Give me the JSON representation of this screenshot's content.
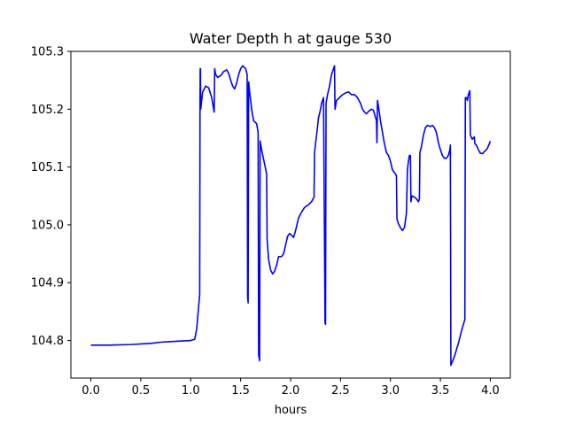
{
  "chart_data": {
    "type": "line",
    "title": "Water Depth h at gauge 530",
    "xlabel": "hours",
    "ylabel": "",
    "xlim": [
      -0.2,
      4.2
    ],
    "ylim": [
      104.735,
      105.3
    ],
    "x_ticks": [
      0.0,
      0.5,
      1.0,
      1.5,
      2.0,
      2.5,
      3.0,
      3.5,
      4.0
    ],
    "x_tick_labels": [
      "0.0",
      "0.5",
      "1.0",
      "1.5",
      "2.0",
      "2.5",
      "3.0",
      "3.5",
      "4.0"
    ],
    "y_ticks": [
      104.8,
      104.9,
      105.0,
      105.1,
      105.2,
      105.3
    ],
    "y_tick_labels": [
      "104.8",
      "104.9",
      "105.0",
      "105.1",
      "105.2",
      "105.3"
    ],
    "grid": false,
    "series": [
      {
        "color": "#0000ff",
        "points": [
          [
            0.0,
            104.792
          ],
          [
            0.2,
            104.792
          ],
          [
            0.4,
            104.793
          ],
          [
            0.6,
            104.795
          ],
          [
            0.7,
            104.797
          ],
          [
            0.8,
            104.798
          ],
          [
            0.9,
            104.799
          ],
          [
            1.0,
            104.8
          ],
          [
            1.04,
            104.802
          ],
          [
            1.06,
            104.82
          ],
          [
            1.09,
            104.88
          ],
          [
            1.093,
            105.2
          ],
          [
            1.095,
            105.27
          ],
          [
            1.098,
            105.27
          ],
          [
            1.1,
            105.2
          ],
          [
            1.12,
            105.23
          ],
          [
            1.15,
            105.24
          ],
          [
            1.18,
            105.237
          ],
          [
            1.21,
            105.22
          ],
          [
            1.235,
            105.195
          ],
          [
            1.24,
            105.27
          ],
          [
            1.25,
            105.26
          ],
          [
            1.27,
            105.255
          ],
          [
            1.3,
            105.258
          ],
          [
            1.33,
            105.265
          ],
          [
            1.36,
            105.268
          ],
          [
            1.38,
            105.262
          ],
          [
            1.4,
            105.25
          ],
          [
            1.42,
            105.24
          ],
          [
            1.44,
            105.235
          ],
          [
            1.46,
            105.245
          ],
          [
            1.48,
            105.26
          ],
          [
            1.5,
            105.27
          ],
          [
            1.52,
            105.275
          ],
          [
            1.55,
            105.27
          ],
          [
            1.565,
            105.26
          ],
          [
            1.57,
            104.875
          ],
          [
            1.575,
            104.865
          ],
          [
            1.58,
            105.247
          ],
          [
            1.59,
            105.23
          ],
          [
            1.61,
            105.2
          ],
          [
            1.63,
            105.18
          ],
          [
            1.66,
            105.175
          ],
          [
            1.675,
            105.16
          ],
          [
            1.68,
            104.775
          ],
          [
            1.69,
            104.765
          ],
          [
            1.695,
            105.145
          ],
          [
            1.71,
            105.13
          ],
          [
            1.74,
            105.105
          ],
          [
            1.76,
            105.088
          ],
          [
            1.765,
            104.975
          ],
          [
            1.78,
            104.94
          ],
          [
            1.8,
            104.922
          ],
          [
            1.82,
            104.915
          ],
          [
            1.84,
            104.92
          ],
          [
            1.86,
            104.93
          ],
          [
            1.88,
            104.945
          ],
          [
            1.91,
            104.945
          ],
          [
            1.93,
            104.95
          ],
          [
            1.95,
            104.965
          ],
          [
            1.97,
            104.98
          ],
          [
            1.99,
            104.985
          ],
          [
            2.01,
            104.982
          ],
          [
            2.03,
            104.978
          ],
          [
            2.05,
            104.99
          ],
          [
            2.08,
            105.012
          ],
          [
            2.11,
            105.022
          ],
          [
            2.14,
            105.03
          ],
          [
            2.18,
            105.035
          ],
          [
            2.21,
            105.04
          ],
          [
            2.235,
            105.048
          ],
          [
            2.24,
            105.125
          ],
          [
            2.26,
            105.155
          ],
          [
            2.28,
            105.185
          ],
          [
            2.3,
            105.2
          ],
          [
            2.31,
            105.21
          ],
          [
            2.33,
            105.22
          ],
          [
            2.345,
            104.83
          ],
          [
            2.35,
            104.828
          ],
          [
            2.355,
            105.21
          ],
          [
            2.37,
            105.225
          ],
          [
            2.39,
            105.24
          ],
          [
            2.41,
            105.26
          ],
          [
            2.44,
            105.275
          ],
          [
            2.445,
            105.2
          ],
          [
            2.46,
            105.215
          ],
          [
            2.49,
            105.22
          ],
          [
            2.52,
            105.225
          ],
          [
            2.55,
            105.228
          ],
          [
            2.58,
            105.23
          ],
          [
            2.61,
            105.225
          ],
          [
            2.64,
            105.225
          ],
          [
            2.67,
            105.22
          ],
          [
            2.7,
            105.21
          ],
          [
            2.72,
            105.2
          ],
          [
            2.74,
            105.195
          ],
          [
            2.76,
            105.192
          ],
          [
            2.78,
            105.196
          ],
          [
            2.81,
            105.2
          ],
          [
            2.83,
            105.198
          ],
          [
            2.86,
            105.18
          ],
          [
            2.865,
            105.142
          ],
          [
            2.87,
            105.215
          ],
          [
            2.88,
            105.205
          ],
          [
            2.9,
            105.18
          ],
          [
            2.92,
            105.16
          ],
          [
            2.94,
            105.14
          ],
          [
            2.96,
            105.125
          ],
          [
            2.98,
            105.12
          ],
          [
            3.0,
            105.11
          ],
          [
            3.02,
            105.095
          ],
          [
            3.05,
            105.088
          ],
          [
            3.06,
            105.085
          ],
          [
            3.065,
            105.01
          ],
          [
            3.08,
            105.002
          ],
          [
            3.1,
            104.995
          ],
          [
            3.12,
            104.99
          ],
          [
            3.14,
            104.995
          ],
          [
            3.16,
            105.02
          ],
          [
            3.17,
            105.095
          ],
          [
            3.18,
            105.11
          ],
          [
            3.19,
            105.12
          ],
          [
            3.2,
            105.12
          ],
          [
            3.205,
            105.04
          ],
          [
            3.215,
            105.05
          ],
          [
            3.24,
            105.048
          ],
          [
            3.26,
            105.045
          ],
          [
            3.28,
            105.04
          ],
          [
            3.29,
            105.045
          ],
          [
            3.295,
            105.125
          ],
          [
            3.31,
            105.135
          ],
          [
            3.33,
            105.155
          ],
          [
            3.35,
            105.168
          ],
          [
            3.37,
            105.172
          ],
          [
            3.4,
            105.17
          ],
          [
            3.42,
            105.172
          ],
          [
            3.44,
            105.168
          ],
          [
            3.46,
            105.16
          ],
          [
            3.48,
            105.142
          ],
          [
            3.5,
            105.13
          ],
          [
            3.52,
            105.12
          ],
          [
            3.54,
            105.115
          ],
          [
            3.56,
            105.115
          ],
          [
            3.58,
            105.12
          ],
          [
            3.595,
            105.13
          ],
          [
            3.6,
            105.138
          ],
          [
            3.605,
            104.757
          ],
          [
            3.64,
            104.772
          ],
          [
            3.68,
            104.795
          ],
          [
            3.72,
            104.822
          ],
          [
            3.745,
            104.836
          ],
          [
            3.75,
            105.22
          ],
          [
            3.76,
            105.22
          ],
          [
            3.77,
            105.215
          ],
          [
            3.78,
            105.225
          ],
          [
            3.795,
            105.232
          ],
          [
            3.8,
            105.155
          ],
          [
            3.82,
            105.148
          ],
          [
            3.84,
            105.152
          ],
          [
            3.845,
            105.14
          ],
          [
            3.86,
            105.138
          ],
          [
            3.88,
            105.13
          ],
          [
            3.9,
            105.124
          ],
          [
            3.92,
            105.123
          ],
          [
            3.95,
            105.128
          ],
          [
            3.97,
            105.132
          ],
          [
            3.99,
            105.14
          ],
          [
            4.0,
            105.145
          ]
        ]
      }
    ]
  }
}
